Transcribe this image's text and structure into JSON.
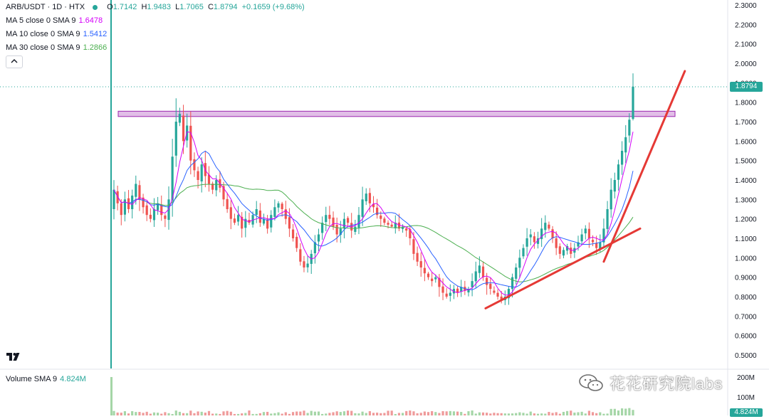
{
  "header": {
    "symbol": "ARB/USDT · 1D · HTX",
    "open_k": "O",
    "open": "1.7142",
    "high_k": "H",
    "high": "1.9483",
    "low_k": "L",
    "low": "1.7065",
    "close_k": "C",
    "close": "1.8794",
    "change": "+0.1659 (+9.68%)"
  },
  "indicators": [
    {
      "label": "MA 5 close 0 SMA 9",
      "value": "1.6478",
      "color": "#d500f9"
    },
    {
      "label": "MA 10 close 0 SMA 9",
      "value": "1.5412",
      "color": "#2962ff"
    },
    {
      "label": "MA 30 close 0 SMA 9",
      "value": "1.2866",
      "color": "#4caf50"
    }
  ],
  "volume_legend": {
    "label": "Volume SMA 9",
    "value": "4.824M"
  },
  "last_price_tag": "1.8794",
  "volume_tag": "4.824M",
  "collapse_icon": "chevron-up-icon",
  "logo": "tradingview-logo",
  "watermark": "花花研究院labs",
  "colors": {
    "up": "#26a69a",
    "down": "#ef5350",
    "ma5": "#d500f9",
    "ma10": "#2962ff",
    "ma30": "#4caf50",
    "zone": "#e1bee7",
    "trend": "#e53935"
  },
  "chart_data": {
    "type": "candlestick",
    "symbol": "ARB/USDT",
    "interval": "1D",
    "exchange": "HTX",
    "price_axis": {
      "ticks": [
        "2.3000",
        "2.2000",
        "2.1000",
        "2.0000",
        "1.9000",
        "1.8000",
        "1.7000",
        "1.6000",
        "1.5000",
        "1.4000",
        "1.3000",
        "1.2000",
        "1.1000",
        "1.0000",
        "0.9000",
        "0.8000",
        "0.7000",
        "0.6000",
        "0.5000"
      ],
      "range": [
        0.45,
        2.3
      ]
    },
    "volume_axis": {
      "ticks": [
        "200M",
        "100M"
      ]
    },
    "grid": false,
    "approx_closes": [
      1.35,
      1.28,
      1.22,
      1.3,
      1.25,
      1.32,
      1.38,
      1.3,
      1.26,
      1.22,
      1.2,
      1.25,
      1.28,
      1.22,
      1.2,
      1.3,
      1.52,
      1.7,
      1.74,
      1.6,
      1.68,
      1.5,
      1.45,
      1.4,
      1.48,
      1.42,
      1.38,
      1.35,
      1.4,
      1.36,
      1.3,
      1.25,
      1.2,
      1.18,
      1.22,
      1.15,
      1.2,
      1.18,
      1.22,
      1.25,
      1.18,
      1.2,
      1.15,
      1.22,
      1.26,
      1.28,
      1.25,
      1.2,
      1.15,
      1.1,
      1.05,
      0.98,
      0.95,
      0.97,
      1.02,
      1.08,
      1.12,
      1.18,
      1.22,
      1.2,
      1.16,
      1.12,
      1.15,
      1.2,
      1.18,
      1.14,
      1.16,
      1.22,
      1.3,
      1.33,
      1.28,
      1.26,
      1.22,
      1.2,
      1.18,
      1.17,
      1.16,
      1.18,
      1.15,
      1.16,
      1.14,
      1.1,
      1.02,
      0.98,
      0.95,
      0.92,
      0.9,
      0.88,
      0.9,
      0.85,
      0.82,
      0.8,
      0.82,
      0.84,
      0.82,
      0.85,
      0.83,
      0.84,
      0.88,
      0.93,
      0.96,
      0.9,
      0.86,
      0.84,
      0.82,
      0.8,
      0.78,
      0.8,
      0.84,
      0.9,
      0.95,
      1.0,
      1.05,
      1.1,
      1.12,
      1.08,
      1.1,
      1.15,
      1.18,
      1.15,
      1.1,
      1.05,
      1.02,
      1.04,
      1.06,
      1.02,
      1.05,
      1.08,
      1.12,
      1.15,
      1.1,
      1.08,
      1.05,
      1.08,
      1.15,
      1.25,
      1.35,
      1.4,
      1.48,
      1.55,
      1.62,
      1.71,
      1.88
    ],
    "ma_values": {
      "MA 5": 1.6478,
      "MA 10": 1.5412,
      "MA 30": 1.2866
    },
    "last_price": 1.8794,
    "annotations": {
      "resistance_zone": {
        "from": 1.73,
        "to": 1.75
      },
      "trendlines": [
        {
          "from": {
            "index": 104,
            "price": 0.74
          },
          "to": {
            "index": 142,
            "price": 1.15
          }
        },
        {
          "from": {
            "index": 134,
            "price": 0.98
          },
          "to": {
            "index": 148,
            "price": 1.96
          }
        }
      ]
    }
  }
}
